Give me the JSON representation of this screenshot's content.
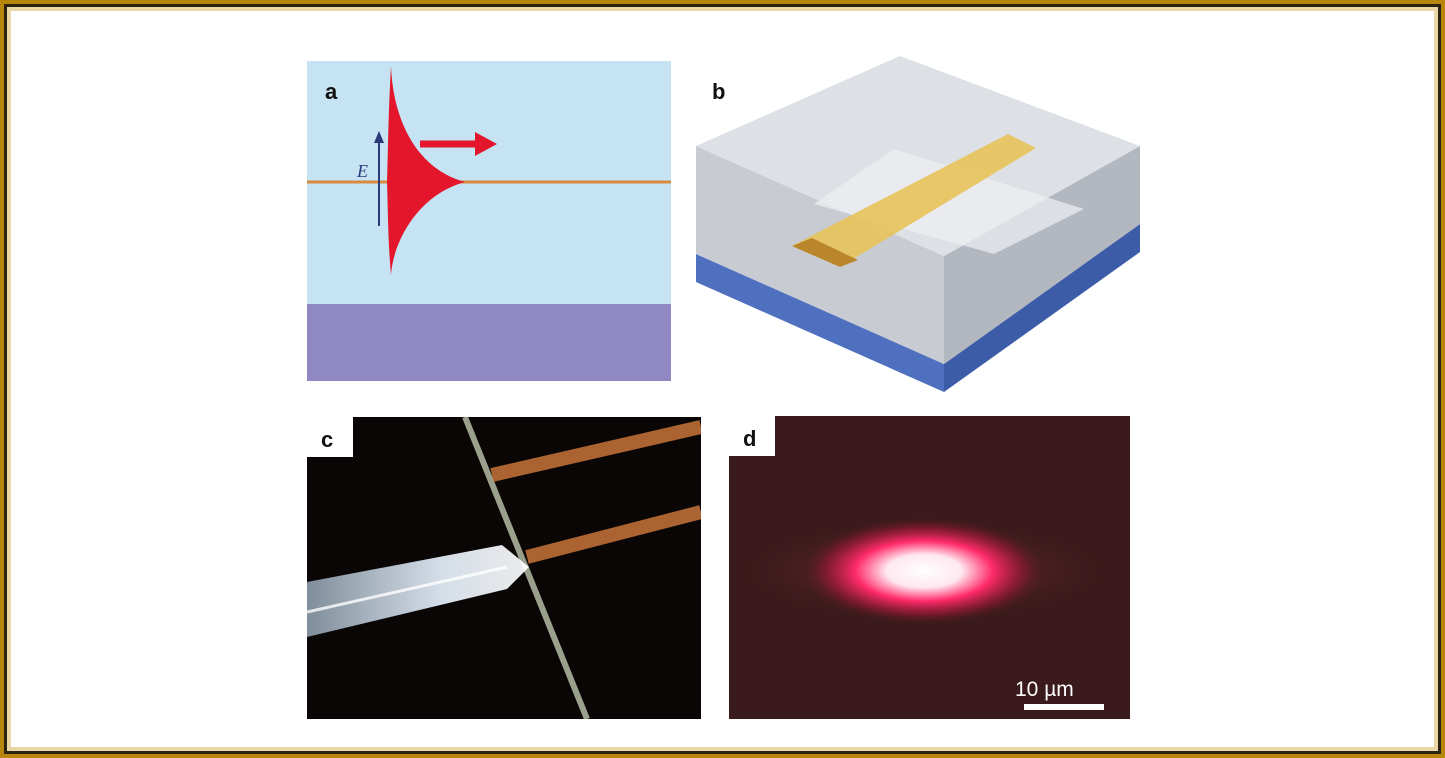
{
  "figure": {
    "panels": [
      {
        "label": "a"
      },
      {
        "label": "b"
      },
      {
        "label": "c"
      },
      {
        "label": "d"
      }
    ],
    "panel_a": {
      "field_symbol": "E"
    },
    "panel_d": {
      "scale_bar_label": "10 µm"
    },
    "colors": {
      "frame": "#b8860b",
      "cladding": "#c5e3f2",
      "substrate": "#9088c2",
      "core_line": "#d88a40",
      "mode_profile": "#e3162c",
      "gold_strip": "#e8c35a",
      "blue_base": "#5070c0"
    }
  }
}
